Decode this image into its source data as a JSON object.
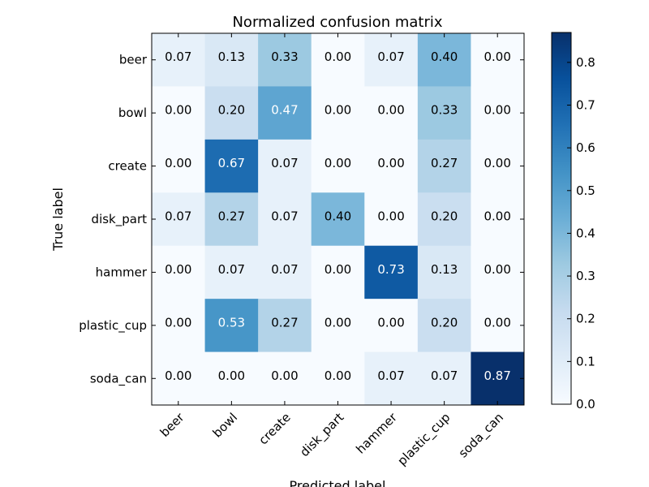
{
  "chart_data": {
    "type": "heatmap",
    "title": "Normalized confusion matrix",
    "xlabel": "Predicted label",
    "ylabel": "True label",
    "x_categories": [
      "beer",
      "bowl",
      "create",
      "disk_part",
      "hammer",
      "plastic_cup",
      "soda_can"
    ],
    "y_categories": [
      "beer",
      "bowl",
      "create",
      "disk_part",
      "hammer",
      "plastic_cup",
      "soda_can"
    ],
    "values": [
      [
        0.07,
        0.13,
        0.33,
        0.0,
        0.07,
        0.4,
        0.0
      ],
      [
        0.0,
        0.2,
        0.47,
        0.0,
        0.0,
        0.33,
        0.0
      ],
      [
        0.0,
        0.67,
        0.07,
        0.0,
        0.0,
        0.27,
        0.0
      ],
      [
        0.07,
        0.27,
        0.07,
        0.4,
        0.0,
        0.2,
        0.0
      ],
      [
        0.0,
        0.07,
        0.07,
        0.0,
        0.73,
        0.13,
        0.0
      ],
      [
        0.0,
        0.53,
        0.27,
        0.0,
        0.0,
        0.2,
        0.0
      ],
      [
        0.0,
        0.0,
        0.0,
        0.0,
        0.07,
        0.07,
        0.87
      ]
    ],
    "colormap": "Blues",
    "colorbar": {
      "range": [
        0.0,
        0.87
      ],
      "ticks": [
        0.0,
        0.1,
        0.2,
        0.3,
        0.4,
        0.5,
        0.6,
        0.7,
        0.8
      ],
      "tick_labels": [
        "0.0",
        "0.1",
        "0.2",
        "0.3",
        "0.4",
        "0.5",
        "0.6",
        "0.7",
        "0.8"
      ]
    },
    "grid": false,
    "x_tick_rotation": 45
  }
}
